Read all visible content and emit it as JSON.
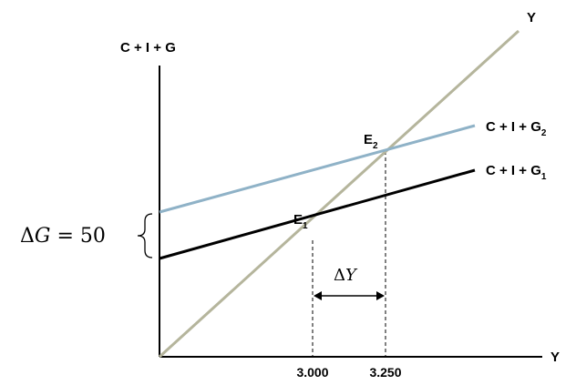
{
  "axes": {
    "y_label": "C + I + G",
    "x_label": "Y"
  },
  "lines": {
    "diagonal": {
      "label": "Y",
      "color": "#b5b59c"
    },
    "upper": {
      "label_main": "C + I + G",
      "label_sub": "2",
      "color": "#8fb2c7"
    },
    "lower": {
      "label_main": "C + I + G",
      "label_sub": "1",
      "color": "#000000"
    }
  },
  "points": {
    "e1": {
      "main": "E",
      "sub": "1"
    },
    "e2": {
      "main": "E",
      "sub": "2"
    }
  },
  "ticks": {
    "x1": "3.000",
    "x2": "3.250"
  },
  "annotations": {
    "delta_g": {
      "delta": "Δ",
      "var": "G",
      "rest": " = 50"
    },
    "delta_y": {
      "delta": "Δ",
      "var": "Y"
    }
  }
}
